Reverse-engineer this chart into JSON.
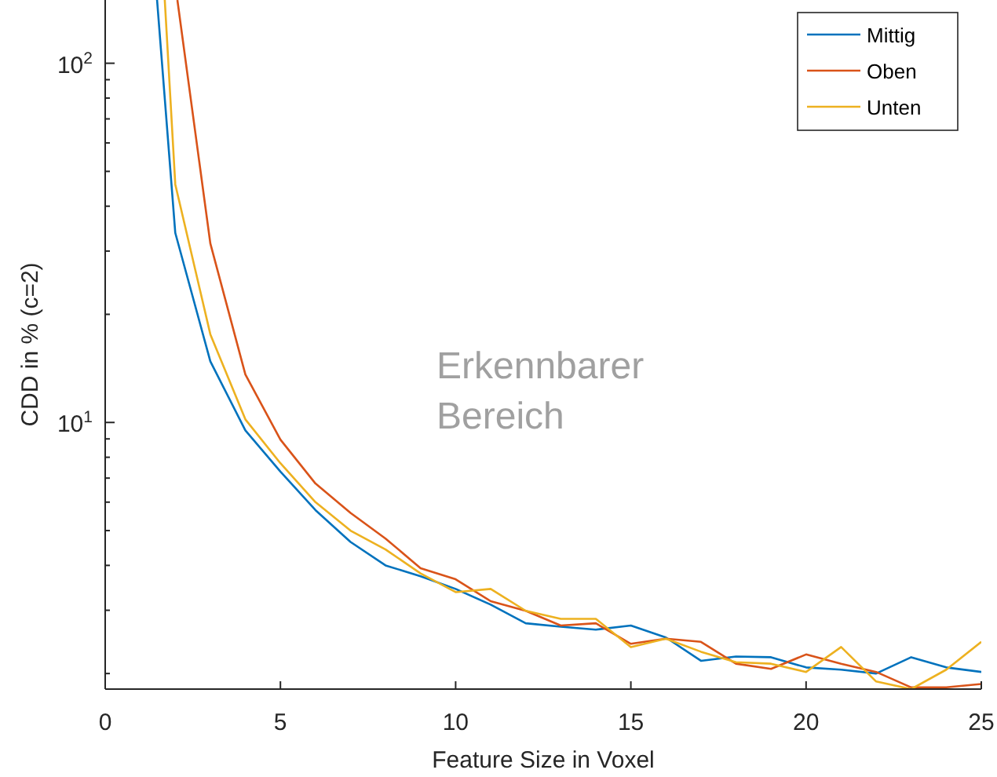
{
  "chart_data": {
    "type": "line",
    "xlabel": "Feature Size in Voxel",
    "ylabel": "CDD in % (c=2)",
    "log": "y",
    "xlim": [
      0,
      25
    ],
    "ylim": [
      1.81,
      150
    ],
    "xticks": [
      0,
      5,
      10,
      15,
      20,
      25
    ],
    "yticks": [
      {
        "value": 2,
        "label": null
      },
      {
        "value": 3,
        "label": null
      },
      {
        "value": 4,
        "label": null
      },
      {
        "value": 5,
        "label": null
      },
      {
        "value": 6,
        "label": null
      },
      {
        "value": 7,
        "label": null
      },
      {
        "value": 8,
        "label": null
      },
      {
        "value": 9,
        "label": null
      },
      {
        "value": 10,
        "label": "10$^{1}$"
      },
      {
        "value": 20,
        "label": null
      },
      {
        "value": 30,
        "label": null
      },
      {
        "value": 40,
        "label": null
      },
      {
        "value": 50,
        "label": null
      },
      {
        "value": 60,
        "label": null
      },
      {
        "value": 70,
        "label": null
      },
      {
        "value": 80,
        "label": null
      },
      {
        "value": 90,
        "label": null
      },
      {
        "value": 100,
        "label": "10$^{2}$"
      }
    ],
    "legend": "top right",
    "grid": false,
    "marker": "none",
    "line_style": "solid",
    "annotations": [
      "Erkennbarer Bereich"
    ],
    "series": [
      {
        "name": "Mittig",
        "color": "#0072bd",
        "x": [
          1.48,
          2,
          3,
          4,
          5,
          6,
          7,
          8,
          9,
          10,
          11,
          12,
          13,
          14,
          15,
          16,
          17,
          18,
          19,
          20,
          21,
          22,
          23,
          24,
          25
        ],
        "values": [
          150,
          33.7,
          14.8,
          9.5,
          7.3,
          5.7,
          4.65,
          4.0,
          3.73,
          3.44,
          3.11,
          2.76,
          2.7,
          2.65,
          2.72,
          2.52,
          2.17,
          2.23,
          2.22,
          2.08,
          2.05,
          2.0,
          2.22,
          2.08,
          2.02
        ]
      },
      {
        "name": "Oben",
        "color": "#d95319",
        "x": [
          2.06,
          3,
          4,
          5,
          6,
          7,
          8,
          9,
          10,
          11,
          12,
          13,
          14,
          15,
          16,
          17,
          18,
          19,
          20,
          21,
          22,
          23,
          24,
          25
        ],
        "values": [
          150,
          31.5,
          13.6,
          8.96,
          6.76,
          5.6,
          4.75,
          3.93,
          3.66,
          3.18,
          2.99,
          2.72,
          2.76,
          2.42,
          2.5,
          2.45,
          2.13,
          2.06,
          2.26,
          2.13,
          2.02,
          1.83,
          1.83,
          1.87
        ]
      },
      {
        "name": "Unten",
        "color": "#edb120",
        "x": [
          1.7,
          2,
          3,
          4,
          5,
          6,
          7,
          8,
          9,
          10,
          11,
          12,
          13,
          14,
          15,
          16,
          17,
          18,
          19,
          20,
          21,
          22,
          23,
          24,
          25
        ],
        "values": [
          150,
          46,
          17.6,
          10.2,
          7.7,
          6.0,
          5.0,
          4.43,
          3.8,
          3.37,
          3.44,
          2.99,
          2.84,
          2.84,
          2.37,
          2.5,
          2.3,
          2.15,
          2.13,
          2.02,
          2.37,
          1.9,
          1.81,
          2.05,
          2.45
        ]
      }
    ]
  }
}
